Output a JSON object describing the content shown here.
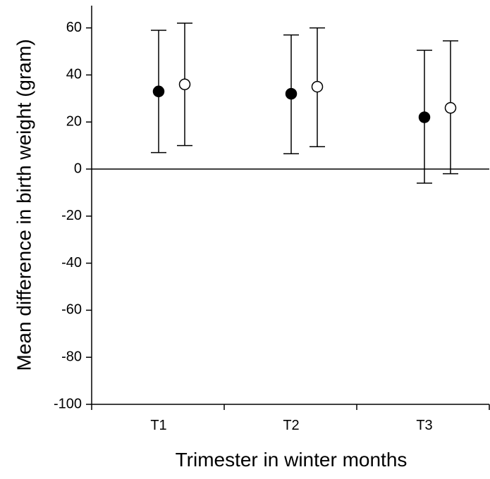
{
  "chart_data": {
    "type": "scatter",
    "title": "",
    "xlabel": "Trimester in winter months",
    "ylabel": "Mean difference in birth weight (gram)",
    "categories": [
      "T1",
      "T2",
      "T3"
    ],
    "ylim": [
      -100,
      70
    ],
    "yticks": [
      -100,
      -80,
      -60,
      -40,
      -20,
      0,
      20,
      40,
      60
    ],
    "reference_line": 0,
    "grid": false,
    "legend": "none",
    "series": [
      {
        "marker": "filled-circle",
        "color": "#000000",
        "values": [
          33,
          32,
          22
        ],
        "lower": [
          7,
          6.5,
          -6
        ],
        "upper": [
          59,
          57,
          50.5
        ]
      },
      {
        "marker": "open-circle",
        "color": "#000000",
        "values": [
          36,
          35,
          26
        ],
        "lower": [
          10,
          9.5,
          -2
        ],
        "upper": [
          62,
          60,
          54.5
        ]
      }
    ]
  }
}
